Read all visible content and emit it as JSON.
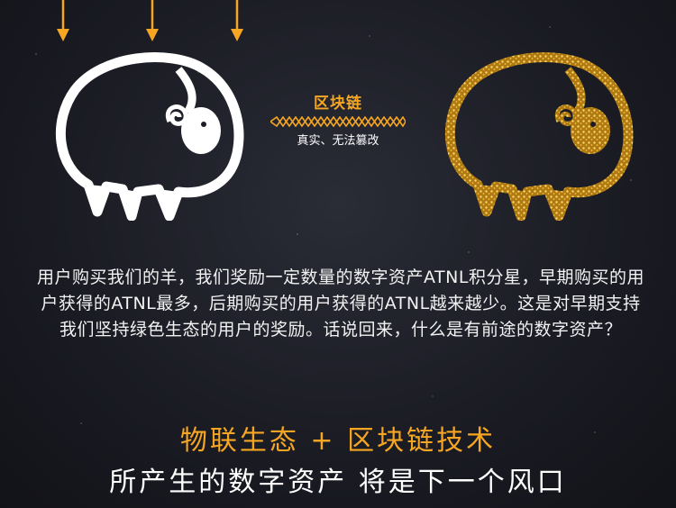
{
  "badge": {
    "title": "区块链",
    "subtitle": "真实、无法篡改"
  },
  "paragraph": "用户购买我们的羊，我们奖励一定数量的数字资产ATNL积分星，早期购买的用户获得的ATNL最多，后期购买的用户获得的ATNL越来越少。这是对早期支持我们坚持绿色生态的用户的奖励。话说回来，什么是有前途的数字资产？",
  "headline1": "物联生态 + 区块链技术",
  "headline2": "所产生的数字资产 将是下一个风口",
  "colors": {
    "accent": "#f6a623",
    "text": "#ffffff",
    "background": "#1b1c24",
    "gold": "#c9951e"
  }
}
